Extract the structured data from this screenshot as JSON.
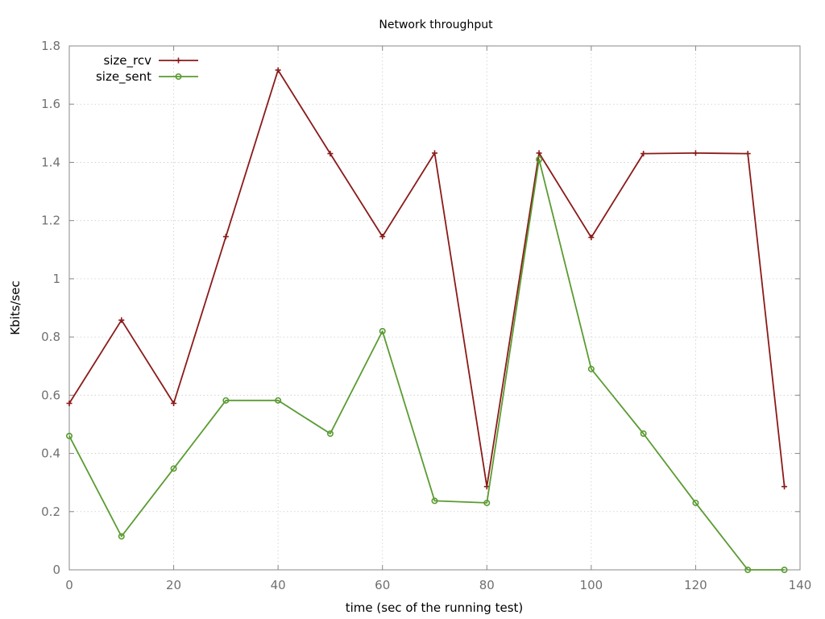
{
  "chart_data": {
    "type": "line",
    "title": "Network throughput",
    "xlabel": "time (sec of the running test)",
    "ylabel": "Kbits/sec",
    "xlim": [
      0,
      140
    ],
    "ylim": [
      0,
      1.8
    ],
    "x_ticks": [
      "0",
      "20",
      "40",
      "60",
      "80",
      "100",
      "120",
      "140"
    ],
    "x_tick_values": [
      0,
      20,
      40,
      60,
      80,
      100,
      120,
      140
    ],
    "y_ticks": [
      "0",
      "0.2",
      "0.4",
      "0.6",
      "0.8",
      "1",
      "1.2",
      "1.4",
      "1.6",
      "1.8"
    ],
    "y_tick_values": [
      0,
      0.2,
      0.4,
      0.6,
      0.8,
      1,
      1.2,
      1.4,
      1.6,
      1.8
    ],
    "grid": true,
    "legend_position": "top-left",
    "series": [
      {
        "name": "size_rcv",
        "color": "#8b1a1a",
        "marker": "plus",
        "x": [
          0,
          10,
          20,
          30,
          40,
          50,
          60,
          70,
          80,
          90,
          100,
          110,
          120,
          130,
          137
        ],
        "y": [
          0.572,
          0.858,
          0.572,
          1.145,
          1.717,
          1.43,
          1.145,
          1.432,
          0.286,
          1.432,
          1.142,
          1.43,
          1.432,
          1.43,
          0.286
        ]
      },
      {
        "name": "size_sent",
        "color": "#5a9b32",
        "marker": "circle",
        "x": [
          0,
          10,
          20,
          30,
          40,
          50,
          60,
          70,
          80,
          90,
          100,
          110,
          120,
          130,
          137
        ],
        "y": [
          0.46,
          0.115,
          0.348,
          0.582,
          0.582,
          0.468,
          0.82,
          0.237,
          0.23,
          1.41,
          0.69,
          0.468,
          0.23,
          0.0,
          0.0
        ]
      }
    ]
  }
}
